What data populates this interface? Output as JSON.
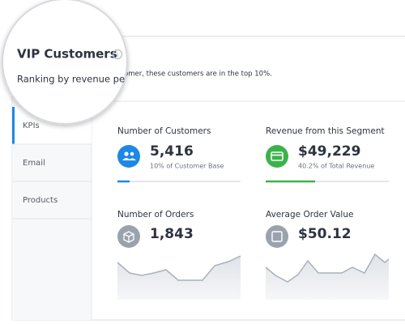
{
  "header": {
    "title": "VIP Customers",
    "subtitle": "Ranking by revenue pe",
    "description": "omer, these customers are in the top 10%."
  },
  "tabs": [
    "KPIs",
    "Email",
    "Products"
  ],
  "cards": [
    {
      "title": "Number of Customers",
      "value": "5,416",
      "caption": "10%  of Customer Base"
    },
    {
      "title": "Revenue from this Segment",
      "value": "$49,229",
      "caption": "40.2% of Total Revenue"
    },
    {
      "title": "Number of Orders",
      "value": "1,843"
    },
    {
      "title": "Average Order Value",
      "value": "$50.12"
    }
  ]
}
